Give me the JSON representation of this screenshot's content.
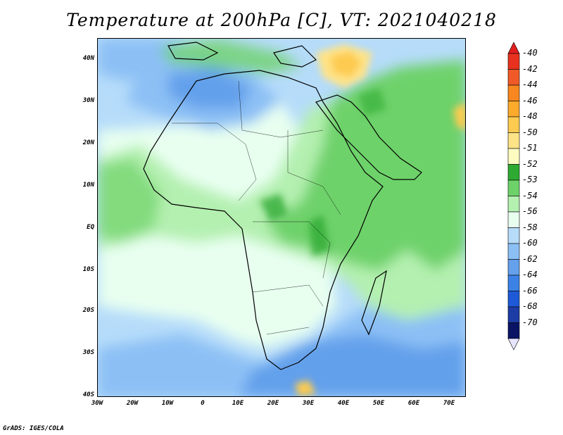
{
  "title": "Temperature at 200hPa [C], VT: 2021040218",
  "footer": "GrADS: IGES/COLA",
  "map": {
    "lat_ticks": [
      "40N",
      "30N",
      "20N",
      "10N",
      "EQ",
      "10S",
      "20S",
      "30S",
      "40S"
    ],
    "lon_ticks": [
      "30W",
      "20W",
      "10W",
      "0",
      "10E",
      "20E",
      "30E",
      "40E",
      "50E",
      "60E",
      "70E"
    ]
  },
  "colorbar": {
    "levels": [
      {
        "label": "-40",
        "color": "#e8321f"
      },
      {
        "label": "-42",
        "color": "#f05a28"
      },
      {
        "label": "-44",
        "color": "#f7871e"
      },
      {
        "label": "-46",
        "color": "#fbaa2c"
      },
      {
        "label": "-48",
        "color": "#fdcb50"
      },
      {
        "label": "-50",
        "color": "#fee387"
      },
      {
        "label": "-51",
        "color": "#fefbc1"
      },
      {
        "label": "-52",
        "color": "#2eaa32"
      },
      {
        "label": "-53",
        "color": "#6ed26a"
      },
      {
        "label": "-54",
        "color": "#b4f0b0"
      },
      {
        "label": "-56",
        "color": "#e8fff0"
      },
      {
        "label": "-58",
        "color": "#b6dcfa"
      },
      {
        "label": "-60",
        "color": "#8cc0f5"
      },
      {
        "label": "-62",
        "color": "#64a0eb"
      },
      {
        "label": "-64",
        "color": "#3c82e6"
      },
      {
        "label": "-66",
        "color": "#1e5ad7"
      },
      {
        "label": "-68",
        "color": "#1e3ca5"
      },
      {
        "label": "-70",
        "color": "#0a1464"
      }
    ],
    "under_color": "#e6e6ff",
    "over_color": "#e11e1e"
  }
}
